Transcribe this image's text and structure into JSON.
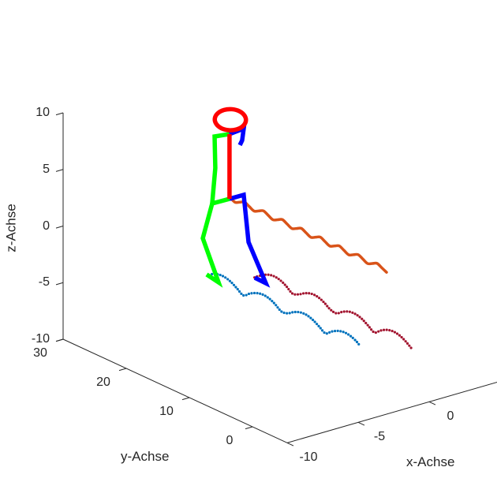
{
  "chart_data": {
    "type": "line3d",
    "title": "",
    "xlabel": "x-Achse",
    "ylabel": "y-Achse",
    "zlabel": "z-Achse",
    "xlim": [
      -10,
      5
    ],
    "ylim": [
      -5.5,
      30
    ],
    "zlim": [
      -10,
      10
    ],
    "grid": false,
    "xticks": [
      "-10",
      "-5",
      "0"
    ],
    "xtick_values": [
      -10,
      -5,
      0
    ],
    "yticks": [
      "0",
      "10",
      "20",
      "30"
    ],
    "ytick_values": [
      0,
      10,
      20,
      30
    ],
    "zticks": [
      "-10",
      "-5",
      "0",
      "5",
      "10"
    ],
    "ztick_values": [
      -10,
      -5,
      0,
      5,
      10
    ],
    "colors": {
      "axis": "#262626",
      "green": "#00FF00",
      "red": "#FF0000",
      "blue": "#0000FF",
      "orange": "#D95319",
      "trail_blue": "#0072BD",
      "trail_red": "#A2142F"
    },
    "series": [
      {
        "id": "hip-trail",
        "color": "#D95319",
        "style": "solid-smooth",
        "points": [
          [
            0,
            26,
            -0.1
          ],
          [
            0,
            25.25,
            -0.3
          ],
          [
            0,
            24.5,
            -0.1
          ],
          [
            0,
            23.75,
            0.1
          ],
          [
            0,
            23,
            -0.1
          ],
          [
            0,
            22.25,
            -0.3
          ],
          [
            0,
            21.5,
            -0.1
          ],
          [
            0,
            20.75,
            0.1
          ],
          [
            0,
            20,
            -0.1
          ],
          [
            0,
            19.25,
            -0.3
          ],
          [
            0,
            18.5,
            -0.1
          ],
          [
            0,
            17.75,
            0.1
          ],
          [
            0,
            17,
            -0.1
          ],
          [
            0,
            16.25,
            -0.3
          ],
          [
            0,
            15.5,
            -0.1
          ],
          [
            0,
            14.75,
            0.1
          ],
          [
            0,
            14,
            -0.1
          ],
          [
            0,
            13.25,
            -0.3
          ],
          [
            0,
            12.5,
            -0.1
          ],
          [
            0,
            11.75,
            0.1
          ],
          [
            0,
            11,
            -0.1
          ],
          [
            0,
            10.25,
            -0.3
          ],
          [
            0,
            9.5,
            -0.1
          ],
          [
            0,
            8.75,
            0.1
          ],
          [
            0,
            8,
            -0.1
          ],
          [
            0,
            7.25,
            -0.3
          ],
          [
            0,
            6.5,
            -0.1
          ],
          [
            0,
            5.75,
            0.1
          ],
          [
            0,
            5,
            -0.1
          ],
          [
            0,
            4.25,
            -0.3
          ],
          [
            0,
            3.5,
            -0.1
          ],
          [
            0,
            2.75,
            0.1
          ],
          [
            0,
            2,
            -0.1
          ],
          [
            0,
            1.25,
            -0.3
          ]
        ]
      },
      {
        "id": "left-foot-trail",
        "color": "#0072BD",
        "style": "dotted-smooth",
        "points": [
          [
            -1.3,
            26,
            -6.37
          ],
          [
            -1.3,
            25,
            -6.14
          ],
          [
            -1.3,
            24,
            -6.11
          ],
          [
            -1.3,
            23,
            -6.28
          ],
          [
            -1.3,
            22,
            -6.62
          ],
          [
            -1.3,
            21,
            -6.96
          ],
          [
            -1.3,
            20,
            -6.54
          ],
          [
            -1.3,
            19,
            -6.24
          ],
          [
            -1.3,
            18,
            -6.1
          ],
          [
            -1.3,
            17,
            -6.17
          ],
          [
            -1.3,
            16,
            -6.44
          ],
          [
            -1.3,
            15,
            -6.83
          ],
          [
            -1.3,
            14,
            -6.74
          ],
          [
            -1.3,
            13,
            -6.37
          ],
          [
            -1.3,
            12,
            -6.14
          ],
          [
            -1.3,
            11,
            -6.11
          ],
          [
            -1.3,
            10,
            -6.29
          ],
          [
            -1.3,
            9,
            -6.62
          ],
          [
            -1.3,
            8,
            -6.96
          ],
          [
            -1.3,
            7,
            -6.54
          ],
          [
            -1.3,
            6,
            -6.23
          ],
          [
            -1.3,
            5,
            -6.1
          ],
          [
            -1.3,
            4,
            -6.18
          ],
          [
            -1.3,
            3,
            -6.44
          ],
          [
            -1.3,
            2.5,
            -6.7
          ]
        ]
      },
      {
        "id": "right-foot-trail",
        "color": "#A2142F",
        "style": "dotted-smooth",
        "points": [
          [
            1.7,
            26,
            -7.75
          ],
          [
            1.7,
            25,
            -7.32
          ],
          [
            1.7,
            24,
            -6.99
          ],
          [
            1.7,
            23,
            -6.85
          ],
          [
            1.7,
            22,
            -6.93
          ],
          [
            1.7,
            21,
            -7.21
          ],
          [
            1.7,
            20,
            -7.62
          ],
          [
            1.7,
            19,
            -7.44
          ],
          [
            1.7,
            18,
            -7.08
          ],
          [
            1.7,
            17,
            -6.87
          ],
          [
            1.7,
            16,
            -6.88
          ],
          [
            1.7,
            15,
            -7.11
          ],
          [
            1.7,
            14,
            -7.48
          ],
          [
            1.7,
            13,
            -7.57
          ],
          [
            1.7,
            12,
            -7.17
          ],
          [
            1.7,
            11,
            -6.91
          ],
          [
            1.7,
            10,
            -6.86
          ],
          [
            1.7,
            9,
            -7.02
          ],
          [
            1.7,
            8,
            -7.36
          ],
          [
            1.7,
            7,
            -7.71
          ],
          [
            1.7,
            6,
            -7.28
          ],
          [
            1.7,
            5,
            -6.97
          ],
          [
            1.7,
            4,
            -6.85
          ],
          [
            1.7,
            3,
            -6.95
          ],
          [
            1.7,
            2,
            -7.24
          ],
          [
            1.7,
            1,
            -7.66
          ]
        ]
      },
      {
        "id": "left-arm",
        "color": "#00FF00",
        "style": "thick",
        "points": [
          [
            -0.06,
            26,
            5.55
          ],
          [
            -1.11,
            26,
            5.72
          ],
          [
            -1.06,
            26,
            2.91
          ],
          [
            -1.28,
            26,
            -0.14
          ]
        ]
      },
      {
        "id": "left-leg",
        "color": "#00FF00",
        "style": "thick",
        "points": [
          [
            -0.06,
            26,
            -0.17
          ],
          [
            -1.28,
            26,
            -0.14
          ],
          [
            -1.94,
            26,
            -2.97
          ],
          [
            -0.83,
            26,
            -7.27
          ],
          [
            -1.67,
            26,
            -6.27
          ]
        ]
      },
      {
        "id": "right-arm",
        "color": "#0000FF",
        "style": "thick",
        "points": [
          [
            -0.06,
            26,
            5.55
          ],
          [
            0.94,
            26,
            5.67
          ],
          [
            0.83,
            26,
            4.67
          ],
          [
            0.67,
            26,
            4.31
          ]
        ]
      },
      {
        "id": "right-leg",
        "color": "#0000FF",
        "style": "thick",
        "points": [
          [
            -0.06,
            26,
            -0.17
          ],
          [
            0.94,
            26,
            -0.18
          ],
          [
            1.28,
            26,
            -4.48
          ],
          [
            2.5,
            26,
            -8.55
          ],
          [
            1.72,
            26,
            -7.78
          ]
        ]
      },
      {
        "id": "torso",
        "color": "#FF0000",
        "style": "thick",
        "points": [
          [
            -0.06,
            26,
            5.55
          ],
          [
            -0.06,
            26,
            -0.17
          ]
        ]
      },
      {
        "id": "head",
        "color": "#FF0000",
        "style": "thick-closed-smooth",
        "points": [
          [
            1,
            26,
            6.8
          ],
          [
            0.87,
            26.5,
            7.1
          ],
          [
            0.5,
            26.87,
            7.32
          ],
          [
            0,
            27,
            7.4
          ],
          [
            -0.5,
            26.87,
            7.32
          ],
          [
            -0.87,
            26.5,
            7.1
          ],
          [
            -1,
            26,
            6.8
          ],
          [
            -0.87,
            25.5,
            6.5
          ],
          [
            -0.5,
            25.13,
            6.28
          ],
          [
            0,
            25,
            6.2
          ],
          [
            0.5,
            25.13,
            6.28
          ],
          [
            0.87,
            25.5,
            6.5
          ]
        ]
      }
    ]
  }
}
